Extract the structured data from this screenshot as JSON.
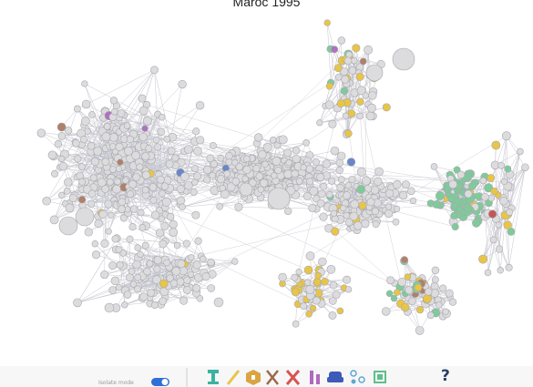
{
  "header": {
    "title": "Maroc 1995"
  },
  "toolbar": {
    "isolate_label": "Isolate mode",
    "help_label": "?"
  }
}
